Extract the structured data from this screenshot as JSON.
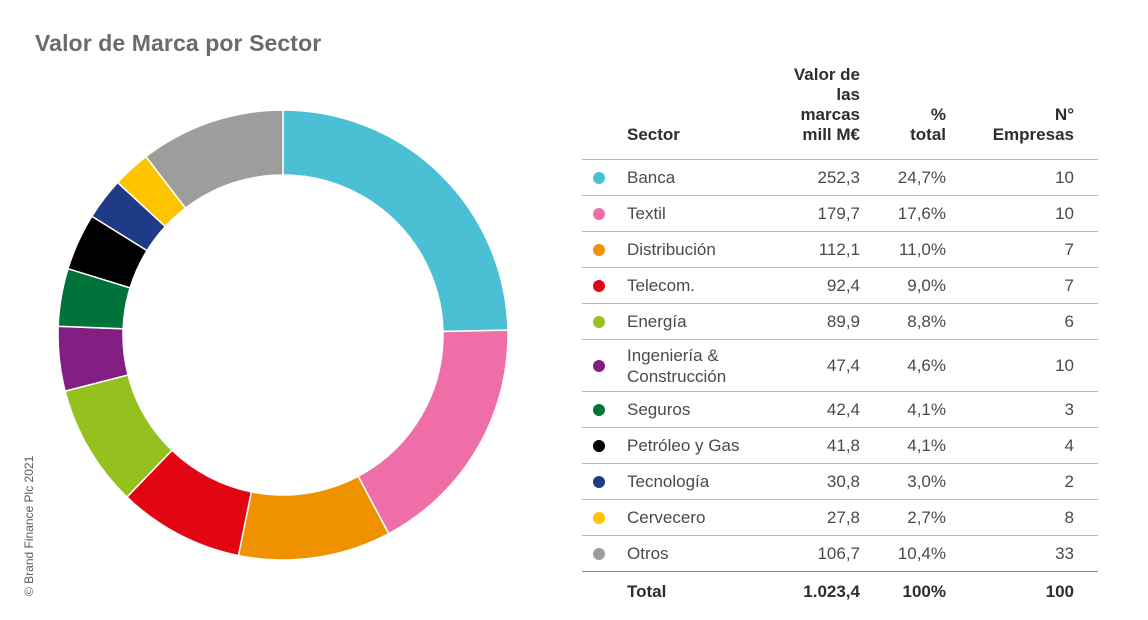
{
  "title": "Valor de Marca por Sector",
  "copyright": "© Brand Finance Plc 2021",
  "table": {
    "headers": {
      "sector": "Sector",
      "valor_lines": [
        "Valor de",
        "las",
        "marcas",
        "mill M€"
      ],
      "pct_lines": [
        "%",
        "total"
      ],
      "num_lines": [
        "N°",
        "Empresas"
      ]
    },
    "total": {
      "label": "Total",
      "valor": "1.023,4",
      "pct": "100%",
      "num": "100"
    }
  },
  "chart_data": {
    "type": "pie",
    "style": "donut",
    "title": "Valor de Marca por Sector",
    "series": [
      {
        "name": "Banca",
        "value": 252.3,
        "value_label": "252,3",
        "pct": "24,7%",
        "empresas": "10",
        "color": "#4bbfd4"
      },
      {
        "name": "Textil",
        "value": 179.7,
        "value_label": "179,7",
        "pct": "17,6%",
        "empresas": "10",
        "color": "#ef6ea8"
      },
      {
        "name": "Distribución",
        "value": 112.1,
        "value_label": "112,1",
        "pct": "11,0%",
        "empresas": "7",
        "color": "#f09200"
      },
      {
        "name": "Telecom.",
        "value": 92.4,
        "value_label": "92,4",
        "pct": "9,0%",
        "empresas": "7",
        "color": "#e20613"
      },
      {
        "name": "Energía",
        "value": 89.9,
        "value_label": "89,9",
        "pct": "8,8%",
        "empresas": "6",
        "color": "#95c11f"
      },
      {
        "name": "Ingeniería & Construcción",
        "name_lines": [
          "Ingeniería &",
          "Construcción"
        ],
        "value": 47.4,
        "value_label": "47,4",
        "pct": "4,6%",
        "empresas": "10",
        "color": "#831f82"
      },
      {
        "name": "Seguros",
        "value": 42.4,
        "value_label": "42,4",
        "pct": "4,1%",
        "empresas": "3",
        "color": "#00733b"
      },
      {
        "name": "Petróleo y Gas",
        "value": 41.8,
        "value_label": "41,8",
        "pct": "4,1%",
        "empresas": "4",
        "color": "#000000"
      },
      {
        "name": "Tecnología",
        "value": 30.8,
        "value_label": "30,8",
        "pct": "3,0%",
        "empresas": "2",
        "color": "#1f3b87"
      },
      {
        "name": "Cervecero",
        "value": 27.8,
        "value_label": "27,8",
        "pct": "2,7%",
        "empresas": "8",
        "color": "#ffc400"
      },
      {
        "name": "Otros",
        "value": 106.7,
        "value_label": "106,7",
        "pct": "10,4%",
        "empresas": "33",
        "color": "#9d9d9c"
      }
    ],
    "legend": "right-table"
  }
}
